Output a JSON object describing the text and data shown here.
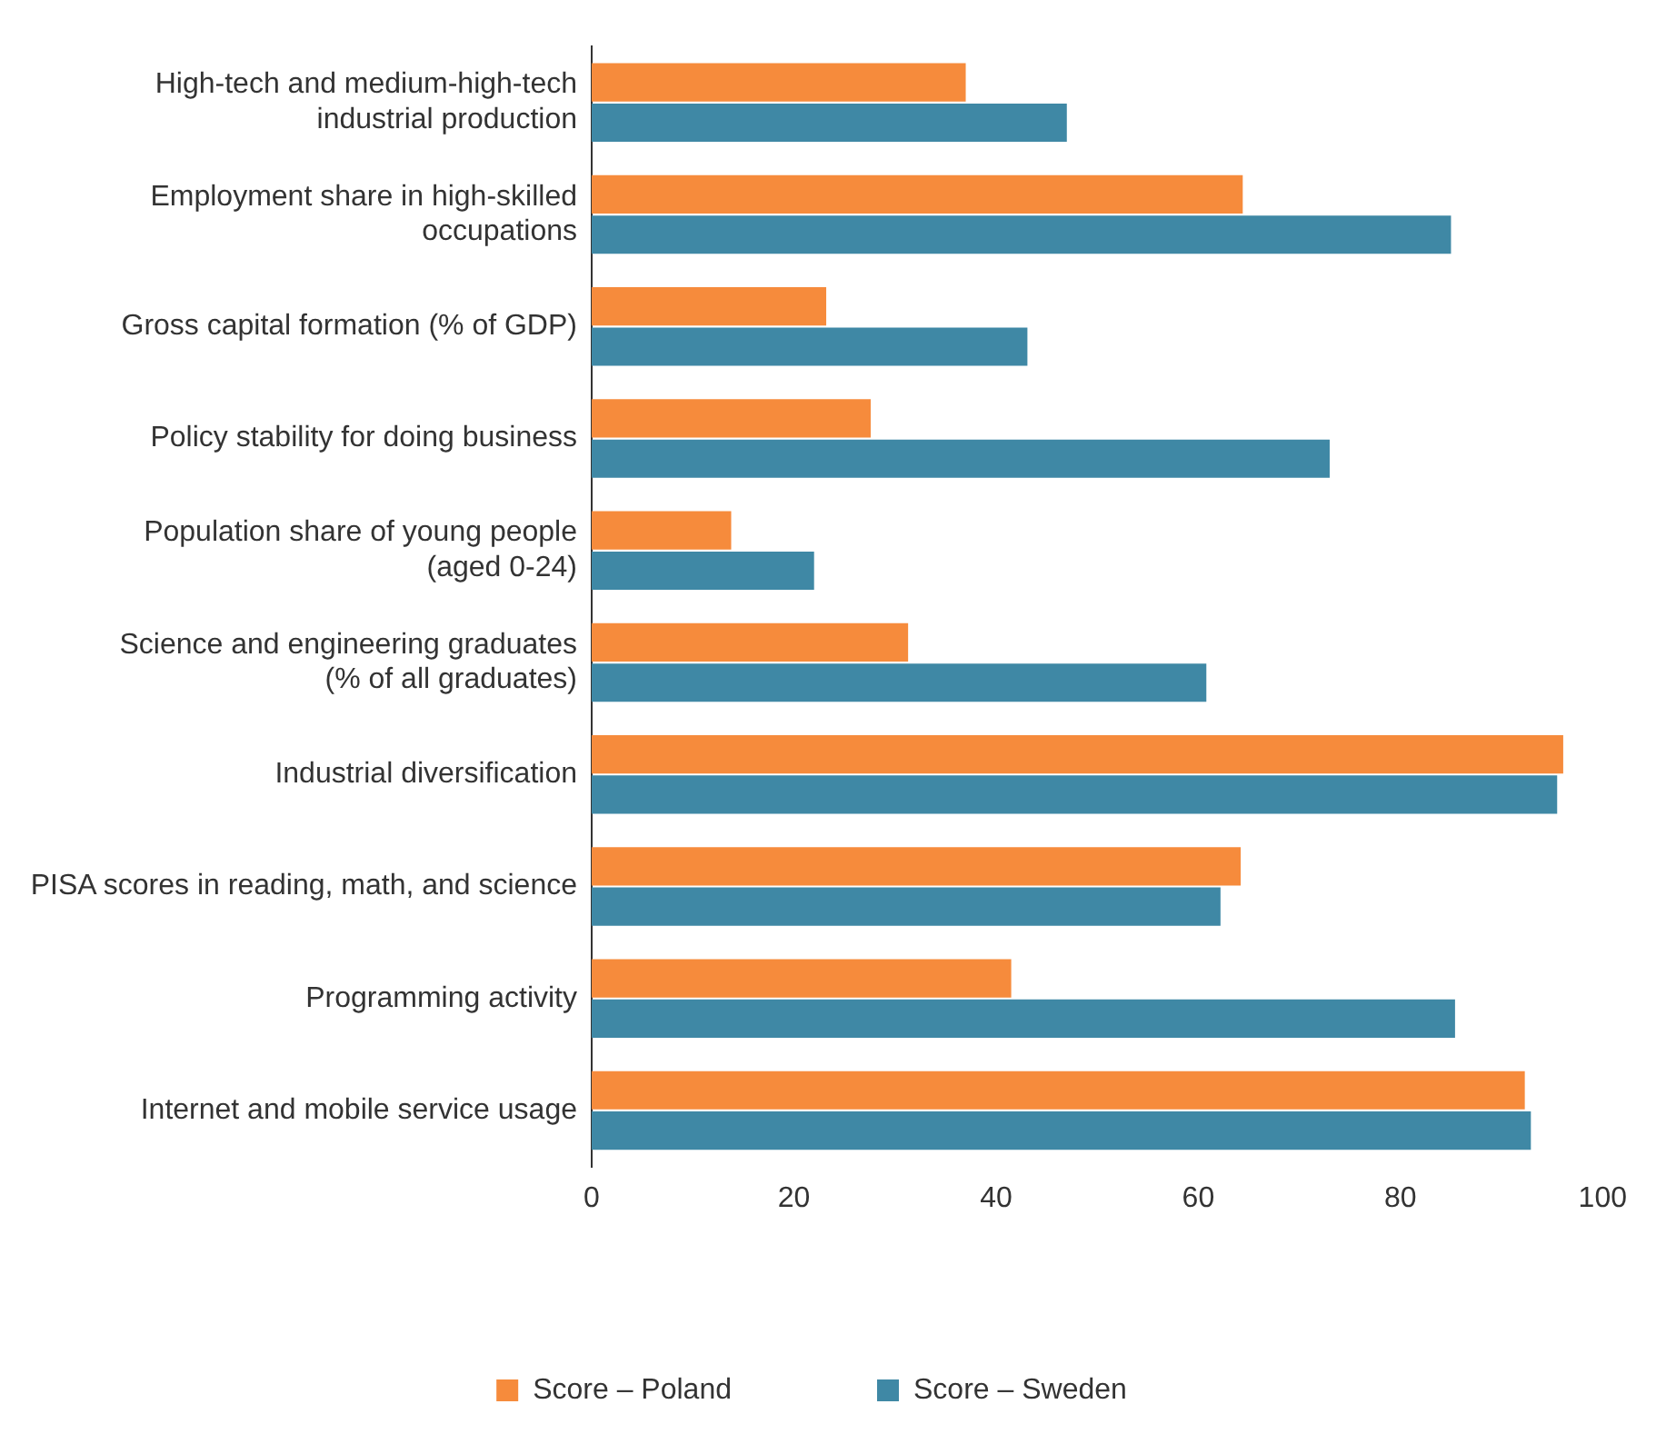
{
  "chart_data": {
    "type": "bar",
    "orientation": "horizontal",
    "categories": [
      "High-tech and medium-high-tech industrial production",
      "Employment share in high-skilled occupations",
      "Gross capital formation (% of GDP)",
      "Policy stability for doing business",
      "Population share of young people (aged 0-24)",
      "Science and engineering graduates (% of all graduates)",
      "Industrial diversification",
      "PISA scores in reading, math, and science",
      "Programming activity",
      "Internet and mobile service usage"
    ],
    "series": [
      {
        "name": "Score – Poland",
        "color": "#f68b3c",
        "values": [
          37,
          64.4,
          23.2,
          27.6,
          13.8,
          31.3,
          96.1,
          64.2,
          41.5,
          92.3
        ]
      },
      {
        "name": "Score – Sweden",
        "color": "#3f88a5",
        "values": [
          47,
          85,
          43.1,
          73,
          22,
          60.8,
          95.5,
          62.2,
          85.4,
          92.9
        ]
      }
    ],
    "xlim": [
      0,
      100
    ],
    "xticks": [
      0,
      20,
      40,
      60,
      80,
      100
    ],
    "grid": false,
    "legend": "bottom"
  }
}
